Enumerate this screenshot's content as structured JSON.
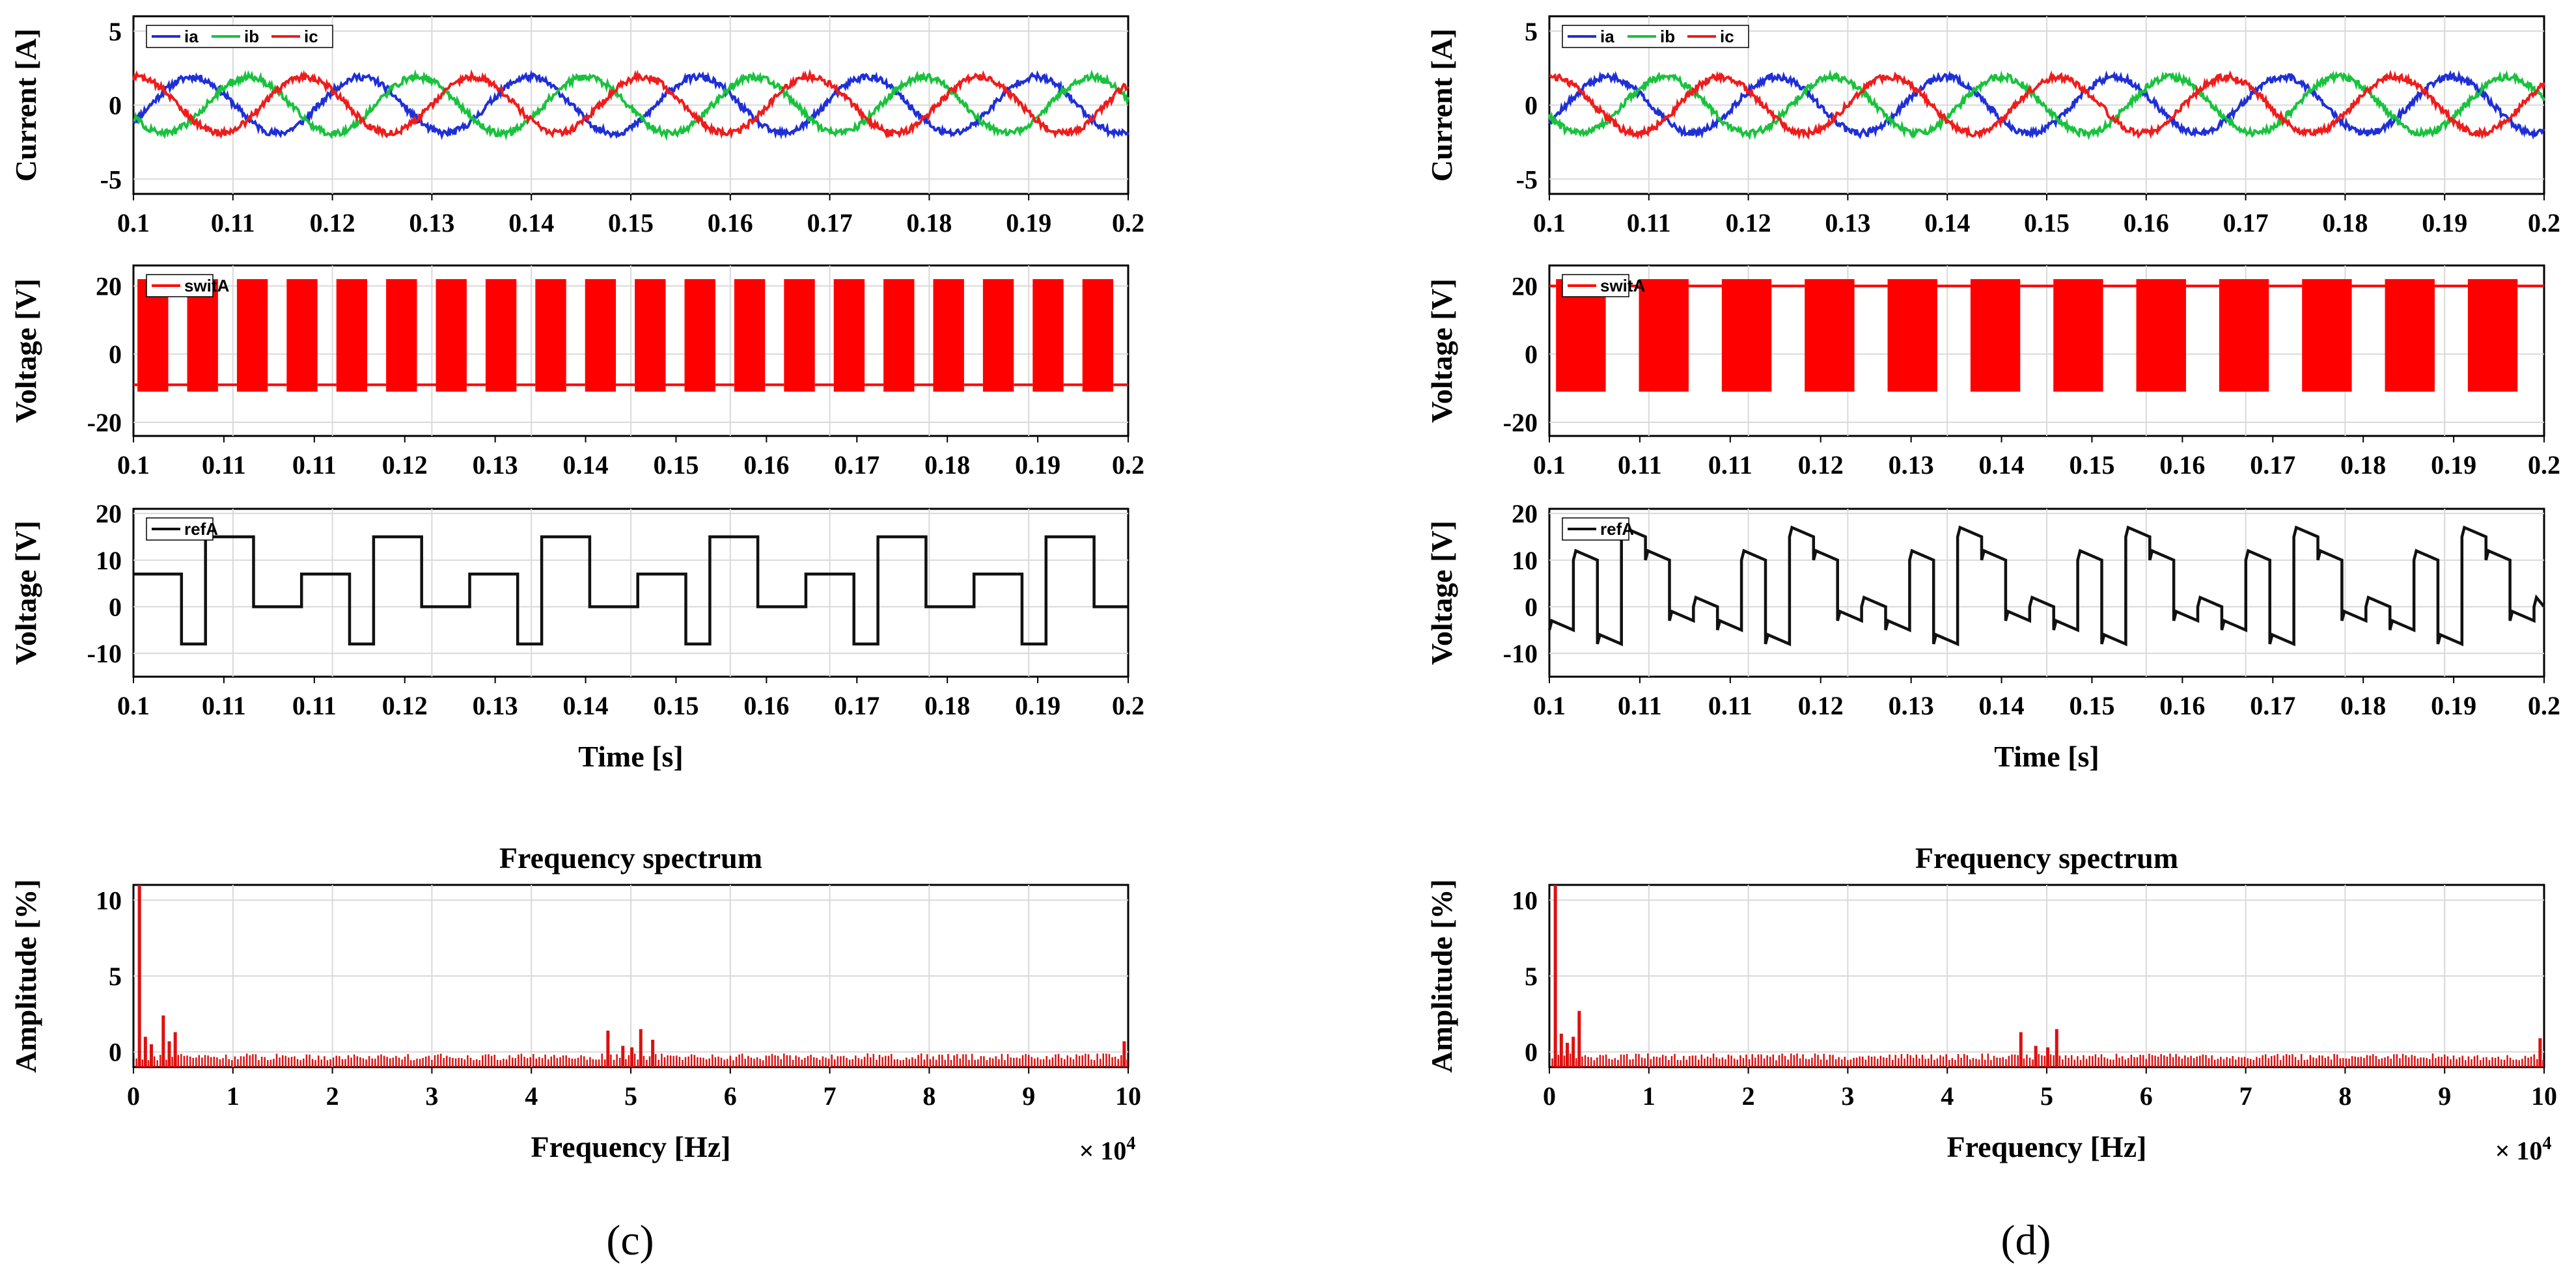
{
  "panels": [
    {
      "label": "(c)",
      "current": {
        "ylabel": "Current [A]",
        "yticks": [
          "5",
          "0",
          "-5"
        ],
        "xticks": [
          "0.1",
          "0.11",
          "0.12",
          "0.13",
          "0.14",
          "0.15",
          "0.16",
          "0.17",
          "0.18",
          "0.19",
          "0.2"
        ],
        "legend": [
          "ia",
          "ib",
          "ic"
        ]
      },
      "switch": {
        "ylabel": "Voltage [V]",
        "yticks": [
          "20",
          "0",
          "-20"
        ],
        "xticks": [
          "0.1",
          "0.11",
          "0.11",
          "0.12",
          "0.13",
          "0.14",
          "0.15",
          "0.16",
          "0.17",
          "0.18",
          "0.19",
          "0.2"
        ],
        "legend": [
          "switA"
        ]
      },
      "ref": {
        "ylabel": "Voltage [V]",
        "yticks": [
          "20",
          "10",
          "0",
          "-10"
        ],
        "xticks": [
          "0.1",
          "0.11",
          "0.11",
          "0.12",
          "0.13",
          "0.14",
          "0.15",
          "0.16",
          "0.17",
          "0.18",
          "0.19",
          "0.2"
        ],
        "xlabel": "Time [s]",
        "legend": [
          "refA"
        ]
      },
      "spectrum": {
        "title": "Frequency spectrum",
        "ylabel": "Amplitude [%]",
        "xlabel": "Frequency [Hz]",
        "yticks": [
          "10",
          "5",
          "0"
        ],
        "xticks": [
          "0",
          "1",
          "2",
          "3",
          "4",
          "5",
          "6",
          "7",
          "8",
          "9",
          "10"
        ],
        "exponent_base": "× 10",
        "exponent_power": "4"
      }
    },
    {
      "label": "(d)",
      "current": {
        "ylabel": "Current [A]",
        "yticks": [
          "5",
          "0",
          "-5"
        ],
        "xticks": [
          "0.1",
          "0.11",
          "0.12",
          "0.13",
          "0.14",
          "0.15",
          "0.16",
          "0.17",
          "0.18",
          "0.19",
          "0.2"
        ],
        "legend": [
          "ia",
          "ib",
          "ic"
        ]
      },
      "switch": {
        "ylabel": "Voltage [V]",
        "yticks": [
          "20",
          "0",
          "-20"
        ],
        "xticks": [
          "0.1",
          "0.11",
          "0.11",
          "0.12",
          "0.13",
          "0.14",
          "0.15",
          "0.16",
          "0.17",
          "0.18",
          "0.19",
          "0.2"
        ],
        "legend": [
          "switA"
        ]
      },
      "ref": {
        "ylabel": "Voltage [V]",
        "yticks": [
          "20",
          "10",
          "0",
          "-10"
        ],
        "xticks": [
          "0.1",
          "0.11",
          "0.11",
          "0.12",
          "0.13",
          "0.14",
          "0.15",
          "0.16",
          "0.17",
          "0.18",
          "0.19",
          "0.2"
        ],
        "xlabel": "Time [s]",
        "legend": [
          "refA"
        ]
      },
      "spectrum": {
        "title": "Frequency spectrum",
        "ylabel": "Amplitude [%]",
        "xlabel": "Frequency [Hz]",
        "yticks": [
          "10",
          "5",
          "0"
        ],
        "xticks": [
          "0",
          "1",
          "2",
          "3",
          "4",
          "5",
          "6",
          "7",
          "8",
          "9",
          "10"
        ],
        "exponent_base": "× 10",
        "exponent_power": "4"
      }
    }
  ],
  "colors": {
    "ia": "#1f2fd6",
    "ib": "#19c23d",
    "ic": "#ee1c1c",
    "switA": "#ff0000",
    "refA": "#111111",
    "spectrum": "#dd1010",
    "grid": "#d9d9d9"
  },
  "chart_data": [
    {
      "type": "line",
      "panel": "(c)",
      "ylabel": "Current [A]",
      "xlim": [
        0.1,
        0.2
      ],
      "ylim": [
        -6,
        6
      ],
      "grid": true,
      "legend_position": "top-left",
      "series": [
        {
          "name": "ia",
          "waveform": "sine",
          "amplitude": 1.9,
          "frequency_hz": 59,
          "phase_deg": 0
        },
        {
          "name": "ib",
          "waveform": "sine",
          "amplitude": 1.9,
          "frequency_hz": 59,
          "phase_deg": -120
        },
        {
          "name": "ic",
          "waveform": "sine",
          "amplitude": 1.9,
          "frequency_hz": 59,
          "phase_deg": 120
        }
      ]
    },
    {
      "type": "line",
      "panel": "(c)",
      "ylabel": "Voltage [V]",
      "xlim": [
        0.1,
        0.2
      ],
      "ylim": [
        -24,
        26
      ],
      "grid": true,
      "legend_position": "top-left",
      "series": [
        {
          "name": "switA",
          "waveform": "pwm",
          "high": 22,
          "low": -11,
          "rest_level": -9,
          "active_bursts": 20
        }
      ]
    },
    {
      "type": "line",
      "panel": "(c)",
      "ylabel": "Voltage [V]",
      "xlabel": "Time [s]",
      "xlim": [
        0.1,
        0.2
      ],
      "ylim": [
        -15,
        21
      ],
      "grid": true,
      "legend_position": "top-left",
      "series": [
        {
          "name": "refA",
          "waveform": "stepped",
          "levels": [
            7,
            7,
            -8,
            15,
            15,
            0,
            0
          ],
          "period_s": 0.0169
        }
      ]
    },
    {
      "type": "bar",
      "panel": "(c)",
      "title": "Frequency spectrum",
      "ylabel": "Amplitude [%]",
      "xlabel": "Frequency [Hz]",
      "xlim": [
        0,
        100000
      ],
      "ylim": [
        -1,
        11
      ],
      "grid": true,
      "x": [
        600,
        1200,
        1800,
        3000,
        3600,
        4200,
        47700,
        49200,
        50100,
        51000,
        52200,
        99600
      ],
      "values": [
        11,
        1.0,
        0.5,
        2.4,
        0.7,
        1.3,
        1.4,
        0.4,
        0.3,
        1.5,
        0.8,
        0.7
      ]
    },
    {
      "type": "line",
      "panel": "(d)",
      "ylabel": "Current [A]",
      "xlim": [
        0.1,
        0.2
      ],
      "ylim": [
        -6,
        6
      ],
      "grid": true,
      "legend_position": "top-left",
      "series": [
        {
          "name": "ia",
          "waveform": "sine",
          "amplitude": 1.9,
          "frequency_hz": 59,
          "phase_deg": 0
        },
        {
          "name": "ib",
          "waveform": "sine",
          "amplitude": 1.9,
          "frequency_hz": 59,
          "phase_deg": -120
        },
        {
          "name": "ic",
          "waveform": "sine",
          "amplitude": 1.9,
          "frequency_hz": 59,
          "phase_deg": 120
        }
      ]
    },
    {
      "type": "line",
      "panel": "(d)",
      "ylabel": "Voltage [V]",
      "xlim": [
        0.1,
        0.2
      ],
      "ylim": [
        -24,
        26
      ],
      "grid": true,
      "legend_position": "top-left",
      "series": [
        {
          "name": "switA",
          "waveform": "pwm",
          "high": 22,
          "low": -11,
          "rest_level": 20,
          "active_bursts": 12
        }
      ]
    },
    {
      "type": "line",
      "panel": "(d)",
      "ylabel": "Voltage [V]",
      "xlabel": "Time [s]",
      "xlim": [
        0.1,
        0.2
      ],
      "ylim": [
        -15,
        21
      ],
      "grid": true,
      "legend_position": "top-left",
      "series": [
        {
          "name": "refA",
          "waveform": "stepped",
          "levels": [
            -5,
            10,
            -8,
            15,
            10,
            -3,
            0
          ],
          "period_s": 0.0169
        }
      ]
    },
    {
      "type": "bar",
      "panel": "(d)",
      "title": "Frequency spectrum",
      "ylabel": "Amplitude [%]",
      "xlabel": "Frequency [Hz]",
      "xlim": [
        0,
        100000
      ],
      "ylim": [
        -1,
        11
      ],
      "grid": true,
      "x": [
        600,
        1200,
        1800,
        2400,
        3000,
        47400,
        48900,
        50100,
        51000,
        99600
      ],
      "values": [
        11,
        1.2,
        0.6,
        1.0,
        2.7,
        1.3,
        0.4,
        0.3,
        1.5,
        0.9
      ]
    }
  ]
}
